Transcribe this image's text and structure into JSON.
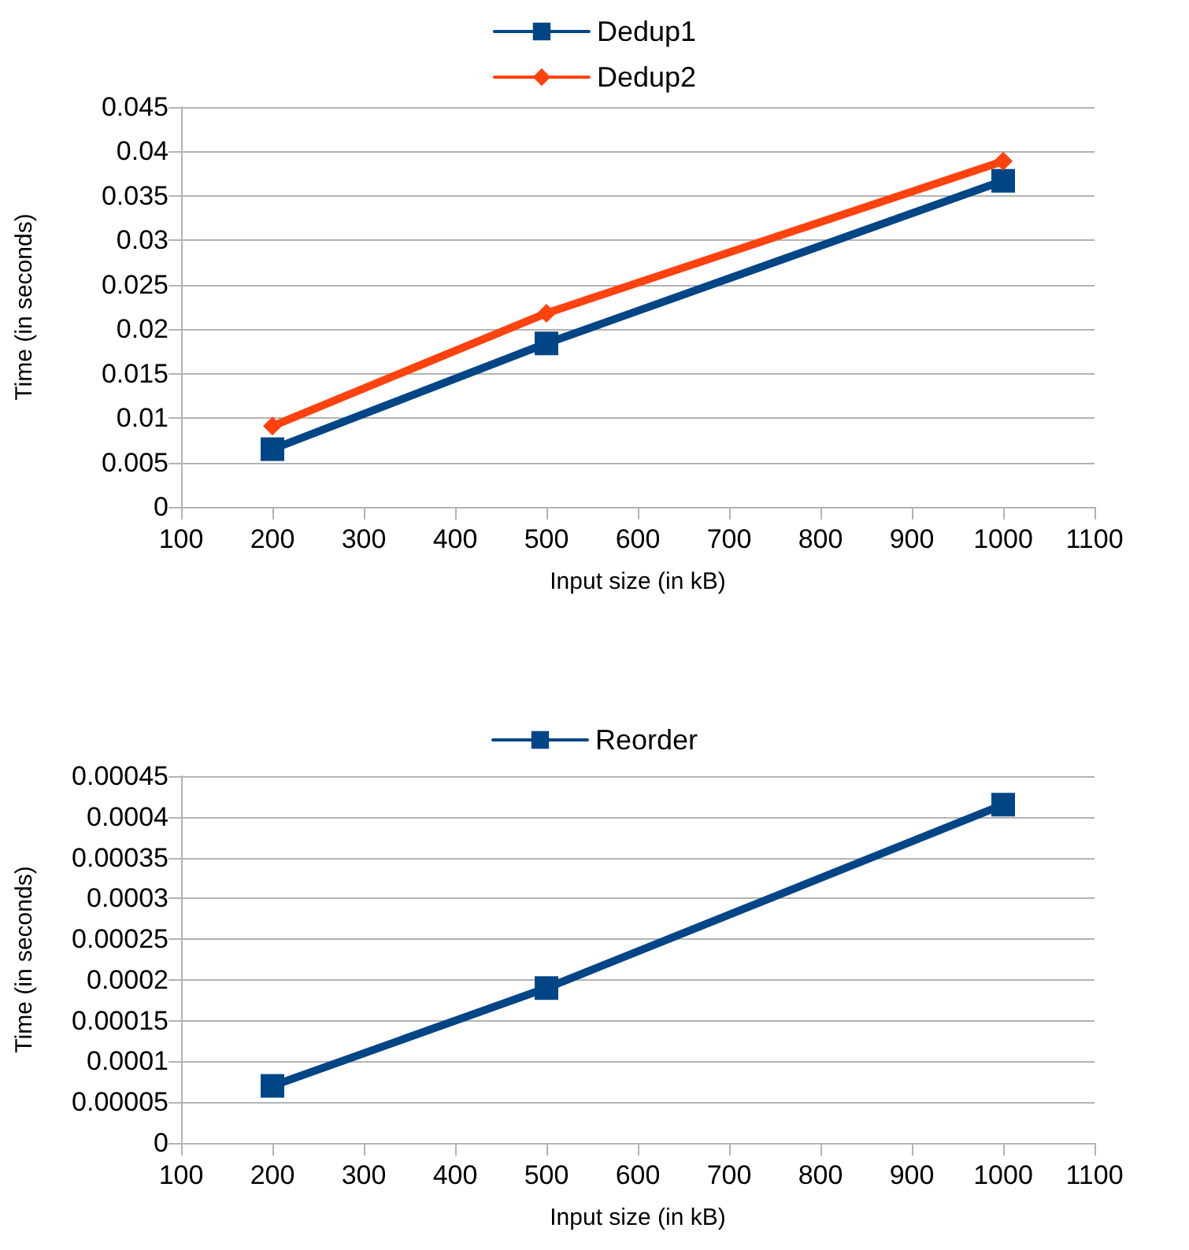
{
  "chart_data": [
    {
      "type": "line",
      "xlabel": "Input size (in kB)",
      "ylabel": "Time (in seconds)",
      "x": [
        200,
        500,
        1000
      ],
      "series": [
        {
          "name": "Dedup1",
          "color": "#004586",
          "marker": "square",
          "values": [
            0.0065,
            0.0184,
            0.0367
          ]
        },
        {
          "name": "Dedup2",
          "color": "#ff420e",
          "marker": "diamond",
          "values": [
            0.0091,
            0.0218,
            0.0389
          ]
        }
      ],
      "xlim": [
        100,
        1100
      ],
      "xticks": [
        100,
        200,
        300,
        400,
        500,
        600,
        700,
        800,
        900,
        1000,
        1100
      ],
      "ylim": [
        0,
        0.045
      ],
      "yticks": [
        0,
        0.005,
        0.01,
        0.015,
        0.02,
        0.025,
        0.03,
        0.035,
        0.04,
        0.045
      ],
      "grid": "y",
      "legend": "top",
      "line_style": "solid"
    },
    {
      "type": "line",
      "xlabel": "Input size (in kB)",
      "ylabel": "Time (in seconds)",
      "x": [
        200,
        500,
        1000
      ],
      "series": [
        {
          "name": "Reorder",
          "color": "#004586",
          "marker": "square",
          "values": [
            7e-05,
            0.00019,
            0.000415
          ]
        }
      ],
      "xlim": [
        100,
        1100
      ],
      "xticks": [
        100,
        200,
        300,
        400,
        500,
        600,
        700,
        800,
        900,
        1000,
        1100
      ],
      "ylim": [
        0,
        0.00045
      ],
      "yticks": [
        0,
        {
          "value": 5e-05,
          "label": "0.00005"
        },
        0.0001,
        0.00015,
        0.0002,
        0.00025,
        0.0003,
        0.00035,
        0.0004,
        0.00045
      ],
      "grid": "y",
      "legend": "top",
      "line_style": "solid"
    }
  ]
}
